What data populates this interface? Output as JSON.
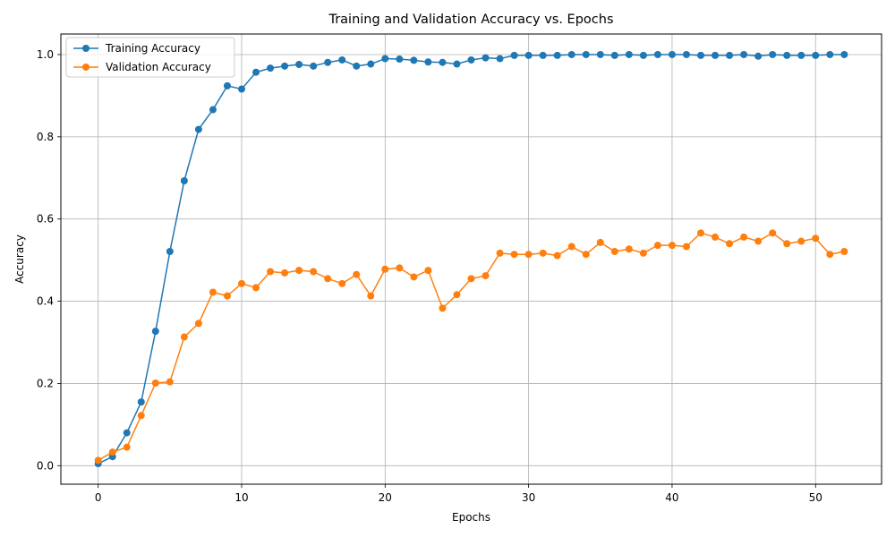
{
  "chart_data": {
    "type": "line",
    "title": "Training and Validation Accuracy vs. Epochs",
    "xlabel": "Epochs",
    "ylabel": "Accuracy",
    "xlim": [
      -2.6,
      54.6
    ],
    "ylim": [
      -0.045,
      1.05
    ],
    "xticks": [
      0,
      10,
      20,
      30,
      40,
      50
    ],
    "yticks": [
      0.0,
      0.2,
      0.4,
      0.6,
      0.8,
      1.0
    ],
    "grid": true,
    "legend_position": "upper-left",
    "x": [
      0,
      1,
      2,
      3,
      4,
      5,
      6,
      7,
      8,
      9,
      10,
      11,
      12,
      13,
      14,
      15,
      16,
      17,
      18,
      19,
      20,
      21,
      22,
      23,
      24,
      25,
      26,
      27,
      28,
      29,
      30,
      31,
      32,
      33,
      34,
      35,
      36,
      37,
      38,
      39,
      40,
      41,
      42,
      43,
      44,
      45,
      46,
      47,
      48,
      49,
      50,
      51,
      52
    ],
    "series": [
      {
        "name": "Training Accuracy",
        "color": "#1f77b4",
        "values": [
          0.005,
          0.022,
          0.08,
          0.155,
          0.327,
          0.521,
          0.693,
          0.818,
          0.866,
          0.924,
          0.916,
          0.957,
          0.967,
          0.972,
          0.976,
          0.972,
          0.981,
          0.987,
          0.972,
          0.977,
          0.99,
          0.989,
          0.986,
          0.982,
          0.981,
          0.977,
          0.987,
          0.992,
          0.99,
          0.998,
          0.998,
          0.998,
          0.998,
          1.0,
          1.0,
          1.0,
          0.998,
          1.0,
          0.998,
          1.0,
          1.0,
          1.0,
          0.998,
          0.998,
          0.998,
          1.0,
          0.996,
          1.0,
          0.998,
          0.998,
          0.998,
          1.0,
          1.0
        ]
      },
      {
        "name": "Validation Accuracy",
        "color": "#ff7f0e",
        "values": [
          0.013,
          0.033,
          0.045,
          0.122,
          0.201,
          0.204,
          0.313,
          0.346,
          0.422,
          0.413,
          0.443,
          0.433,
          0.472,
          0.469,
          0.475,
          0.472,
          0.455,
          0.443,
          0.465,
          0.413,
          0.478,
          0.481,
          0.459,
          0.475,
          0.383,
          0.416,
          0.455,
          0.462,
          0.517,
          0.514,
          0.514,
          0.517,
          0.511,
          0.533,
          0.514,
          0.543,
          0.521,
          0.527,
          0.517,
          0.536,
          0.536,
          0.533,
          0.566,
          0.556,
          0.54,
          0.556,
          0.546,
          0.566,
          0.54,
          0.546,
          0.553,
          0.514,
          0.521
        ]
      }
    ]
  }
}
